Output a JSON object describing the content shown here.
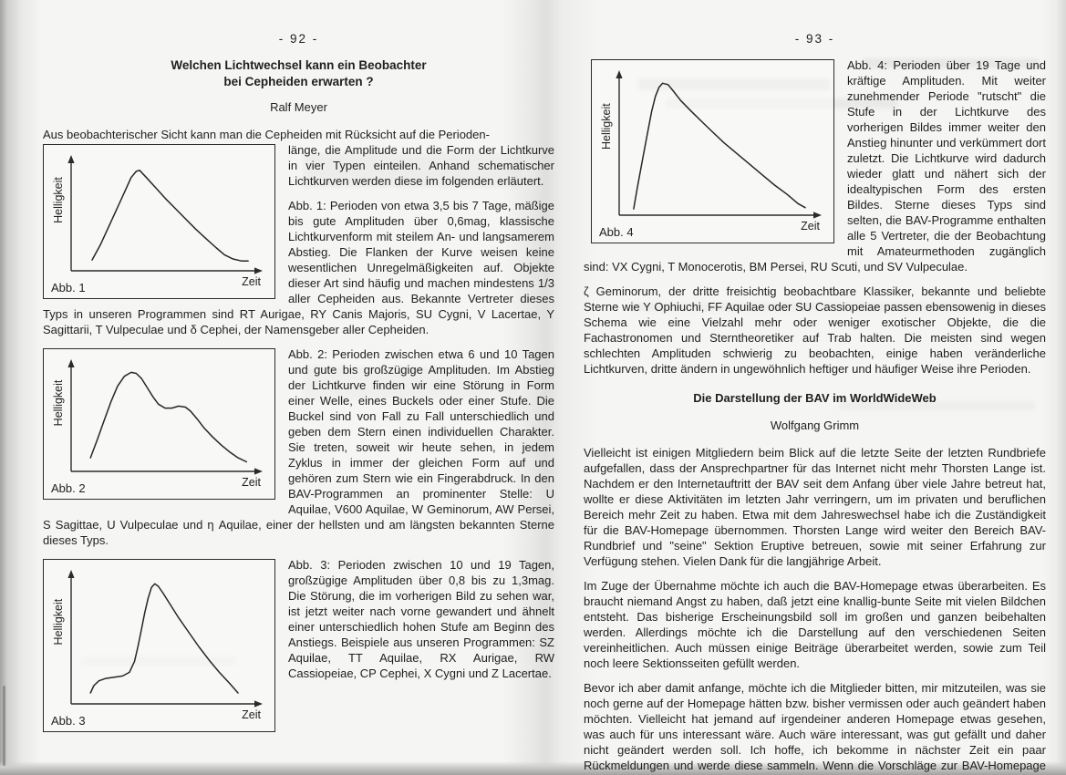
{
  "left_page": {
    "page_number": "- 92 -",
    "title_line1": "Welchen Lichtwechsel kann ein Beobachter",
    "title_line2": "bei Cepheiden erwarten ?",
    "author": "Ralf Meyer",
    "intro_line": "Aus beobachterischer Sicht kann man die Cepheiden mit Rücksicht auf die Perioden-",
    "para1": "länge, die Amplitude und die Form der Lichtkurve in vier Typen einteilen. Anhand schematischer Lichtkurven werden diese im folgenden erläutert.",
    "para2": "Abb. 1: Perioden von etwa 3,5 bis 7 Tage, mäßige bis gute Amplituden über 0,6mag, klassische Lichtkurvenform mit steilem An- und langsamerem Abstieg. Die Flanken der Kurve weisen keine wesentlichen Unregelmäßigkeiten auf. Objekte dieser Art sind häufig und machen mindestens 1/3 aller Cepheiden aus. Bekannte Vertreter dieses Typs in unseren Programmen sind RT Aurigae, RY Canis Majoris, SU Cygni, V Lacertae, Y Sagittarii, T Vulpeculae und δ Cephei, der Namensgeber aller Cepheiden.",
    "para3": "Abb. 2: Perioden zwischen etwa 6 und 10 Tagen und gute bis großzügige Amplituden. Im Abstieg der Lichtkurve finden wir eine Störung in Form einer Welle, eines Buckels oder einer Stufe. Die Buckel sind von Fall zu Fall unterschiedlich und geben dem Stern einen individuellen Charakter. Sie treten, soweit wir heute sehen, in jedem Zyklus in immer der gleichen Form auf und gehören zum Stern wie ein Fingerabdruck. In den BAV-Programmen an prominenter Stelle: U Aquilae, V600 Aquilae, W Geminorum, AW Persei, S Sagittae, U Vulpeculae und η Aquilae, einer der hellsten und am längsten bekannten Sterne dieses Typs.",
    "para4": "Abb. 3: Perioden zwischen 10 und 19 Tagen, großzügige Amplituden über 0,8 bis zu 1,3mag. Die Störung, die im vorherigen Bild zu sehen war, ist jetzt weiter nach vorne gewandert und ähnelt einer unterschiedlich hohen Stufe am Beginn des Anstiegs. Beispiele aus unseren Programmen: SZ Aquilae, TT Aquilae, RX Aurigae, RW Cassiopeiae, CP Cephei, X Cygni und Z Lacertae."
  },
  "right_page": {
    "page_number": "- 93 -",
    "para1": "Abb. 4: Perioden über 19 Tage und kräftige Amplituden. Mit weiter zunehmender Periode \"rutscht\" die Stufe in der Lichtkurve des vorherigen Bildes immer weiter den Anstieg hinunter und verkümmert dort zuletzt. Die Lichtkurve wird dadurch wieder glatt und nähert sich der idealtypischen Form des ersten Bildes. Sterne dieses Typs sind selten, die BAV-Programme enthalten alle 5 Vertreter, die der Beobachtung mit Amateurmethoden zugänglich sind: VX Cygni, T Monocerotis, BM Persei, RU Scuti, und SV Vulpeculae.",
    "para2": "ζ Geminorum, der dritte freisichtig beobachtbare Klassiker, bekannte und beliebte Sterne wie Y Ophiuchi, FF Aquilae oder SU Cassiopeiae passen ebensowenig in dieses Schema wie eine Vielzahl mehr oder weniger exotischer Objekte, die die Fachastronomen und Sterntheoretiker auf Trab halten. Die meisten sind wegen schlechten Amplituden schwierig zu beobachten, einige haben veränderliche Lichtkurven, dritte ändern in ungewöhnlich heftiger und häufiger Weise ihre Perioden.",
    "section_title": "Die Darstellung der BAV im WorldWideWeb",
    "section_author": "Wolfgang Grimm",
    "para3": "Vielleicht ist einigen Mitgliedern beim Blick auf die letzte Seite der letzten Rundbriefe aufgefallen, dass der Ansprechpartner für das Internet nicht mehr Thorsten Lange ist. Nachdem er den Internetauftritt der BAV seit dem Anfang über viele Jahre betreut hat, wollte er diese Aktivitäten im letzten Jahr verringern, um im privaten und beruflichen Bereich mehr Zeit zu haben. Etwa mit dem Jahreswechsel habe ich die Zuständigkeit für die BAV-Homepage übernommen. Thorsten Lange wird weiter den Bereich BAV-Rundbrief und \"seine\" Sektion Eruptive betreuen, sowie mit seiner Erfahrung zur Verfügung stehen. Vielen Dank für die langjährige Arbeit.",
    "para4": "Im Zuge der Übernahme möchte ich auch die BAV-Homepage etwas überarbeiten. Es braucht niemand Angst zu haben, daß jetzt eine knallig-bunte Seite mit vielen Bildchen entsteht. Das bisherige Erscheinungsbild soll im großen und ganzen beibehalten werden. Allerdings möchte ich die Darstellung auf den verschiedenen Seiten vereinheitlichen. Auch müssen einige Beiträge überarbeitet werden, sowie zum Teil noch leere Sektionsseiten gefüllt werden.",
    "para5": "Bevor ich aber damit anfange, möchte ich die Mitglieder bitten, mir mitzuteilen, was sie noch gerne auf der Homepage hätten bzw. bisher vermissen oder auch geändert haben möchten. Vielleicht hat jemand auf irgendeiner anderen Homepage etwas gesehen, was auch für uns interessant wäre. Auch wäre interessant, was gut gefällt und daher nicht geändert werden soll. Ich hoffe, ich bekomme in nächster Zeit ein paar Rückmeldungen und werde diese sammeln. Wenn die Vorschläge zur BAV-Homepage passen und (technisch) ohne übermäßig großen Aufwand machbar sind, werde ich sie berücksichtigen."
  },
  "chart_data": [
    {
      "type": "line",
      "title": "Abb. 1",
      "xlabel": "Zeit",
      "ylabel": "Helligkeit",
      "xlim": [
        0,
        100
      ],
      "ylim": [
        0,
        100
      ],
      "points": [
        [
          7,
          7
        ],
        [
          12,
          22
        ],
        [
          17,
          40
        ],
        [
          22,
          58
        ],
        [
          27,
          76
        ],
        [
          30,
          87
        ],
        [
          33,
          93
        ],
        [
          35,
          94
        ],
        [
          39,
          87
        ],
        [
          44,
          78
        ],
        [
          50,
          67
        ],
        [
          56,
          57
        ],
        [
          62,
          47
        ],
        [
          68,
          37
        ],
        [
          74,
          28
        ],
        [
          80,
          19
        ],
        [
          85,
          12
        ],
        [
          90,
          8
        ],
        [
          95,
          6
        ],
        [
          99,
          6
        ]
      ]
    },
    {
      "type": "line",
      "title": "Abb. 2",
      "xlabel": "Zeit",
      "ylabel": "Helligkeit",
      "xlim": [
        0,
        100
      ],
      "ylim": [
        0,
        100
      ],
      "points": [
        [
          6,
          10
        ],
        [
          10,
          28
        ],
        [
          14,
          47
        ],
        [
          18,
          66
        ],
        [
          22,
          82
        ],
        [
          26,
          92
        ],
        [
          30,
          96
        ],
        [
          33,
          95
        ],
        [
          36,
          90
        ],
        [
          39,
          82
        ],
        [
          43,
          71
        ],
        [
          46,
          64
        ],
        [
          50,
          60
        ],
        [
          54,
          60
        ],
        [
          58,
          62
        ],
        [
          62,
          61
        ],
        [
          65,
          57
        ],
        [
          69,
          49
        ],
        [
          73,
          40
        ],
        [
          78,
          31
        ],
        [
          83,
          23
        ],
        [
          88,
          16
        ],
        [
          93,
          10
        ],
        [
          98,
          6
        ]
      ]
    },
    {
      "type": "line",
      "title": "Abb. 3",
      "xlabel": "Zeit",
      "ylabel": "Helligkeit",
      "xlim": [
        0,
        100
      ],
      "ylim": [
        0,
        100
      ],
      "points": [
        [
          6,
          6
        ],
        [
          8,
          12
        ],
        [
          11,
          16
        ],
        [
          15,
          18
        ],
        [
          20,
          19
        ],
        [
          25,
          20
        ],
        [
          29,
          23
        ],
        [
          32,
          32
        ],
        [
          34,
          44
        ],
        [
          36,
          58
        ],
        [
          38,
          72
        ],
        [
          40,
          84
        ],
        [
          42,
          93
        ],
        [
          44,
          96
        ],
        [
          46,
          94
        ],
        [
          49,
          88
        ],
        [
          53,
          79
        ],
        [
          58,
          68
        ],
        [
          64,
          56
        ],
        [
          70,
          44
        ],
        [
          76,
          33
        ],
        [
          82,
          23
        ],
        [
          88,
          14
        ],
        [
          93,
          6
        ]
      ]
    },
    {
      "type": "line",
      "title": "Abb. 4",
      "xlabel": "Zeit",
      "ylabel": "Helligkeit",
      "xlim": [
        0,
        100
      ],
      "ylim": [
        0,
        100
      ],
      "points": [
        [
          3,
          2
        ],
        [
          5,
          18
        ],
        [
          8,
          40
        ],
        [
          11,
          62
        ],
        [
          13,
          76
        ],
        [
          15,
          87
        ],
        [
          17,
          94
        ],
        [
          19,
          97
        ],
        [
          22,
          96
        ],
        [
          25,
          91
        ],
        [
          29,
          84
        ],
        [
          34,
          77
        ],
        [
          40,
          69
        ],
        [
          46,
          61
        ],
        [
          53,
          52
        ],
        [
          60,
          44
        ],
        [
          67,
          36
        ],
        [
          74,
          28
        ],
        [
          81,
          20
        ],
        [
          88,
          13
        ],
        [
          94,
          6
        ],
        [
          98,
          3
        ]
      ]
    }
  ]
}
